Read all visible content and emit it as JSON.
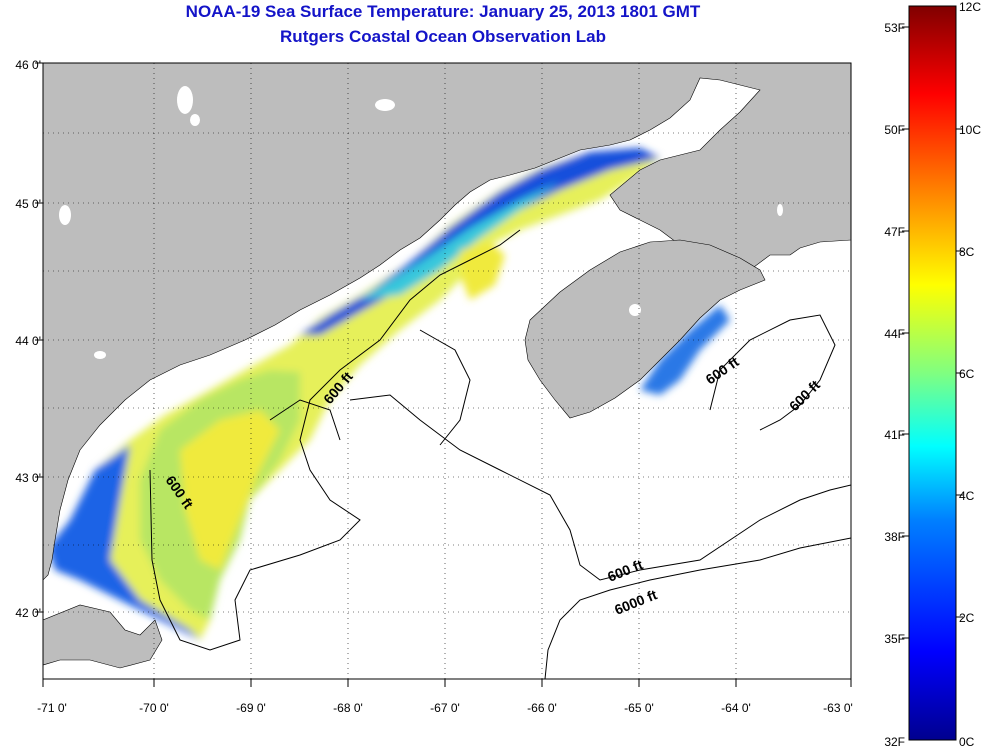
{
  "title": "NOAA-19 Sea Surface Temperature:  January 25, 2013 1801 GMT",
  "subtitle": "Rutgers Coastal Ocean Observation Lab",
  "map": {
    "lon_range": [
      -71,
      -63
    ],
    "lat_range": [
      41.5,
      46
    ],
    "x_ticks": [
      "-71 0'",
      "-70 0'",
      "-69 0'",
      "-68 0'",
      "-67 0'",
      "-66 0'",
      "-65 0'",
      "-64 0'",
      "-63 0'"
    ],
    "y_ticks": [
      "46 0'",
      "45 0'",
      "44 0'",
      "43 0'",
      "42 0'"
    ],
    "land_color": "#bdbdbd",
    "sea_color": "#ffffff",
    "grid": "dotted",
    "contours": [
      {
        "label": "600 ft"
      },
      {
        "label": "600 ft"
      },
      {
        "label": "600 ft"
      },
      {
        "label": "600 ft"
      },
      {
        "label": "600 ft"
      },
      {
        "label": "6000 ft"
      }
    ]
  },
  "colorbar": {
    "celsius_ticks": [
      "12C",
      "10C",
      "8C",
      "6C",
      "4C",
      "2C",
      "0C"
    ],
    "fahrenheit_ticks": [
      "53F",
      "50F",
      "47F",
      "44F",
      "41F",
      "38F",
      "35F",
      "32F"
    ],
    "colors": [
      "#00008f",
      "#0000ff",
      "#0080ff",
      "#00ffff",
      "#80ff80",
      "#ffff00",
      "#ff8000",
      "#ff0000",
      "#800000"
    ]
  }
}
